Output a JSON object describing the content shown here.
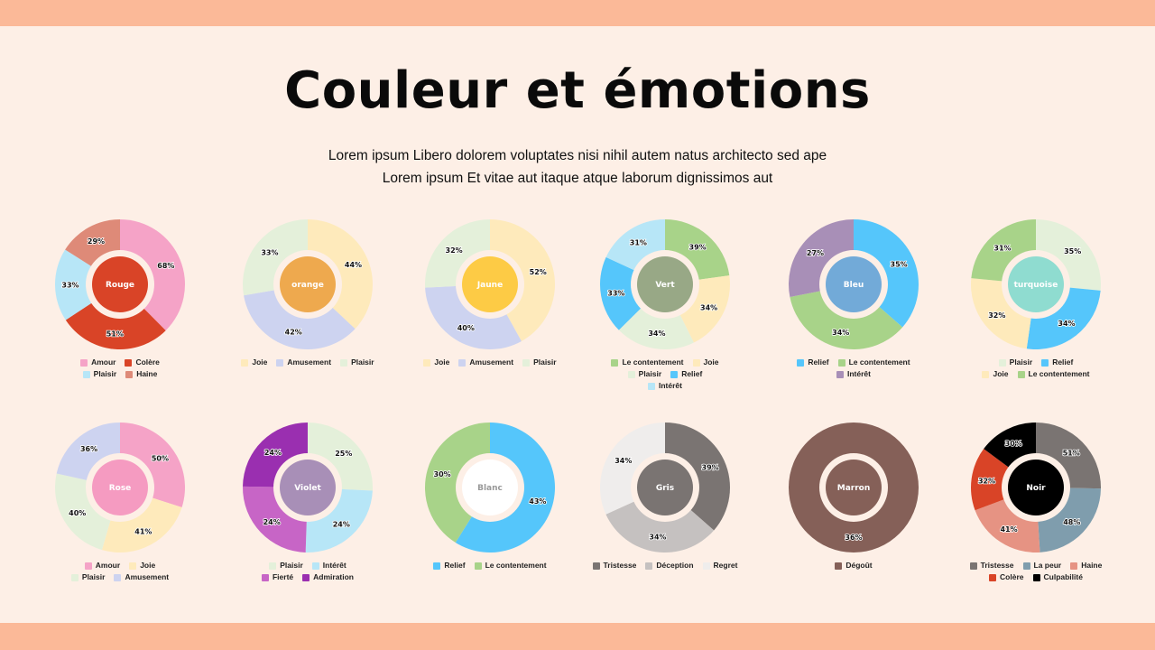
{
  "page": {
    "title": "Couleur et émotions",
    "subtitle_line1": "Lorem ipsum Libero dolorem voluptates nisi nihil autem natus architecto sed ape",
    "subtitle_line2": "Lorem ipsum Et vitae aut itaque atque laborum dignissimos aut",
    "colors": {
      "background": "#fdefe6",
      "band": "#fbb998",
      "title": "#0a0a0a"
    }
  },
  "chart_data": [
    {
      "type": "pie",
      "title": "Rouge",
      "center_color": "#d94427",
      "center_text_color": "#ffffff",
      "categories": [
        "Amour",
        "Colère",
        "Plaisir",
        "Haine"
      ],
      "values": [
        68,
        51,
        33,
        29
      ],
      "colors": [
        "#f5a3c7",
        "#d94427",
        "#b7e6f7",
        "#de8a78"
      ],
      "legend": [
        [
          "Amour",
          "Colère"
        ],
        [
          "Plaisir",
          "Haine"
        ]
      ],
      "legend_colors": [
        [
          "#f5a3c7",
          "#d94427"
        ],
        [
          "#b7e6f7",
          "#de8a78"
        ]
      ]
    },
    {
      "type": "pie",
      "title": "orange",
      "center_color": "#eea94e",
      "center_text_color": "#ffffff",
      "categories": [
        "Joie",
        "Amusement",
        "Plaisir"
      ],
      "values": [
        44,
        42,
        33
      ],
      "colors": [
        "#feeabb",
        "#cdd3f0",
        "#e4f0da"
      ],
      "legend": [
        [
          "Joie",
          "Amusement",
          "Plaisir"
        ]
      ],
      "legend_colors": [
        [
          "#feeabb",
          "#cdd3f0",
          "#e4f0da"
        ]
      ]
    },
    {
      "type": "pie",
      "title": "Jaune",
      "center_color": "#fdcb45",
      "center_text_color": "#ffffff",
      "categories": [
        "Joie",
        "Amusement",
        "Plaisir"
      ],
      "values": [
        52,
        40,
        32
      ],
      "colors": [
        "#feeabb",
        "#cdd3f0",
        "#e4f0da"
      ],
      "legend": [
        [
          "Joie",
          "Amusement",
          "Plaisir"
        ]
      ],
      "legend_colors": [
        [
          "#feeabb",
          "#cdd3f0",
          "#e4f0da"
        ]
      ]
    },
    {
      "type": "pie",
      "title": "Vert",
      "center_color": "#98a886",
      "center_text_color": "#ffffff",
      "categories": [
        "Le contentement",
        "Joie",
        "Plaisir",
        "Relief",
        "Intérêt"
      ],
      "values": [
        39,
        34,
        34,
        33,
        31
      ],
      "colors": [
        "#a8d389",
        "#feeabb",
        "#e4f0da",
        "#55c6fb",
        "#b7e6f7"
      ],
      "legend": [
        [
          "Le contentement",
          "Joie"
        ],
        [
          "Plaisir",
          "Relief"
        ],
        [
          "Intérêt"
        ]
      ],
      "legend_colors": [
        [
          "#a8d389",
          "#feeabb"
        ],
        [
          "#e4f0da",
          "#55c6fb"
        ],
        [
          "#b7e6f7"
        ]
      ]
    },
    {
      "type": "pie",
      "title": "Bleu",
      "center_color": "#72aad8",
      "center_text_color": "#ffffff",
      "categories": [
        "Relief",
        "Le contentement",
        "Intérêt"
      ],
      "values": [
        35,
        34,
        27
      ],
      "colors": [
        "#55c6fb",
        "#a8d389",
        "#a88fb7"
      ],
      "legend": [
        [
          "Relief",
          "Le contentement"
        ],
        [
          "Intérêt"
        ]
      ],
      "legend_colors": [
        [
          "#55c6fb",
          "#a8d389"
        ],
        [
          "#a88fb7"
        ]
      ]
    },
    {
      "type": "pie",
      "title": "turquoise",
      "center_color": "#8fdcd0",
      "center_text_color": "#ffffff",
      "categories": [
        "Plaisir",
        "Relief",
        "Joie",
        "Le contentement"
      ],
      "values": [
        35,
        34,
        32,
        31
      ],
      "colors": [
        "#e4f0da",
        "#55c6fb",
        "#feeabb",
        "#a8d389"
      ],
      "legend": [
        [
          "Plaisir",
          "Relief"
        ],
        [
          "Joie",
          "Le contentement"
        ]
      ],
      "legend_colors": [
        [
          "#e4f0da",
          "#55c6fb"
        ],
        [
          "#feeabb",
          "#a8d389"
        ]
      ]
    },
    {
      "type": "pie",
      "title": "Rose",
      "center_color": "#f59bc1",
      "center_text_color": "#ffffff",
      "categories": [
        "Amour",
        "Joie",
        "Plaisir",
        "Amusement"
      ],
      "values": [
        50,
        41,
        40,
        36
      ],
      "colors": [
        "#f5a3c7",
        "#feeabb",
        "#e4f0da",
        "#cdd3f0"
      ],
      "legend": [
        [
          "Amour",
          "Joie"
        ],
        [
          "Plaisir",
          "Amusement"
        ]
      ],
      "legend_colors": [
        [
          "#f5a3c7",
          "#feeabb"
        ],
        [
          "#e4f0da",
          "#cdd3f0"
        ]
      ]
    },
    {
      "type": "pie",
      "title": "Violet",
      "center_color": "#a88fb7",
      "center_text_color": "#ffffff",
      "categories": [
        "Plaisir",
        "Intérêt",
        "Fierté",
        "Admiration"
      ],
      "values": [
        25,
        24,
        24,
        24
      ],
      "colors": [
        "#e4f0da",
        "#b7e6f7",
        "#c765c6",
        "#9a2fb0"
      ],
      "legend": [
        [
          "Plaisir",
          "Intérêt"
        ],
        [
          "Fierté",
          "Admiration"
        ]
      ],
      "legend_colors": [
        [
          "#e4f0da",
          "#b7e6f7"
        ],
        [
          "#c765c6",
          "#9a2fb0"
        ]
      ]
    },
    {
      "type": "pie",
      "title": "Blanc",
      "center_color": "#ffffff",
      "center_text_color": "#999999",
      "categories": [
        "Relief",
        "Le contentement"
      ],
      "values": [
        43,
        30
      ],
      "colors": [
        "#55c6fb",
        "#a8d389"
      ],
      "legend": [
        [
          "Relief",
          "Le contentement"
        ]
      ],
      "legend_colors": [
        [
          "#55c6fb",
          "#a8d389"
        ]
      ]
    },
    {
      "type": "pie",
      "title": "Gris",
      "center_color": "#7a7472",
      "center_text_color": "#ffffff",
      "categories": [
        "Tristesse",
        "Déception",
        "Regret"
      ],
      "values": [
        39,
        34,
        34
      ],
      "colors": [
        "#7a7472",
        "#c5c1c0",
        "#efedec"
      ],
      "legend": [
        [
          "Tristesse",
          "Déception",
          "Regret"
        ]
      ],
      "legend_colors": [
        [
          "#7a7472",
          "#c5c1c0",
          "#efedec"
        ]
      ]
    },
    {
      "type": "pie",
      "title": "Marron",
      "center_color": "#856058",
      "center_text_color": "#ffffff",
      "categories": [
        "Dégoût"
      ],
      "values": [
        36
      ],
      "colors": [
        "#856058"
      ],
      "legend": [
        [
          "Dégoût"
        ]
      ],
      "legend_colors": [
        [
          "#856058"
        ]
      ]
    },
    {
      "type": "pie",
      "title": "Noir",
      "center_color": "#000000",
      "center_text_color": "#ffffff",
      "categories": [
        "Tristesse",
        "La peur",
        "Haine",
        "Colère",
        "Culpabilité"
      ],
      "values": [
        51,
        48,
        41,
        32,
        30
      ],
      "colors": [
        "#7a7472",
        "#7f9dad",
        "#e69383",
        "#d94427",
        "#000000"
      ],
      "legend": [
        [
          "Tristesse",
          "La peur",
          "Haine"
        ],
        [
          "Colère",
          "Culpabilité"
        ]
      ],
      "legend_colors": [
        [
          "#7a7472",
          "#7f9dad",
          "#e69383"
        ],
        [
          "#d94427",
          "#000000"
        ]
      ]
    }
  ]
}
